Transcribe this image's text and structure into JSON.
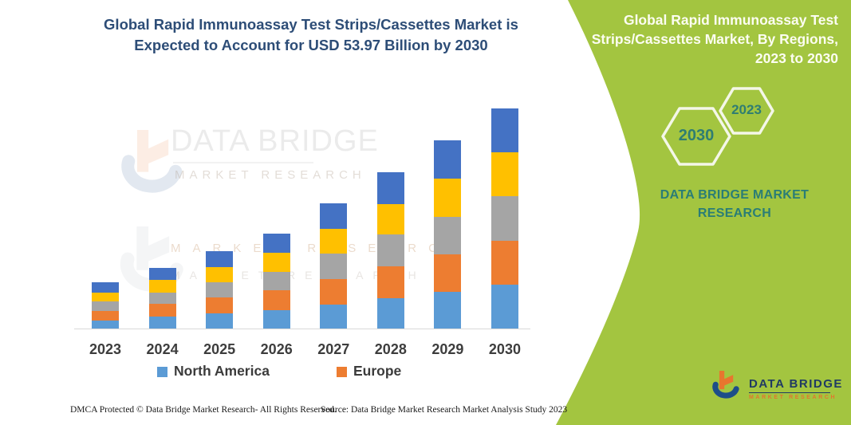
{
  "header": {
    "title_lines": [
      "Global Rapid Immunoassay Test Strips/Cassettes Market is",
      "Expected to Account for USD 53.97 Billion by 2030"
    ]
  },
  "side_panel": {
    "heading_lines": [
      "Global Rapid Immunoassay Test",
      "Strips/Cassettes Market, By Regions,",
      "2023 to 2030"
    ],
    "hexagons": {
      "large": {
        "label": "2030"
      },
      "small": {
        "label": "2023"
      }
    },
    "brand_lines": [
      "DATA BRIDGE MARKET",
      "RESEARCH"
    ],
    "colors": {
      "panel_green": "#a3c540",
      "teal_text": "#2a7d76",
      "hex_outline": "#f4f7e8"
    }
  },
  "watermark": {
    "title": "DATA BRIDGE",
    "subtitle": "MARKET RESEARCH",
    "row2": "MARKET RESEARCH",
    "row3": "MARKET RESEARCH"
  },
  "legend": [
    {
      "label": "North America",
      "color": "#5B9BD5"
    },
    {
      "label": "Europe",
      "color": "#ED7D31"
    }
  ],
  "footer": {
    "dmca": "DMCA Protected © Data Bridge Market Research-  All Rights Reserved.",
    "source": "Source: Data Bridge Market Research  Market Analysis Study 2023"
  },
  "logo": {
    "name": "DATA BRIDGE",
    "subtitle": "MARKET RESEARCH"
  },
  "chart_data": {
    "type": "bar",
    "stacked": true,
    "unit": "USD Billion",
    "annotation": "2030 total = USD 53.97 Billion (from title)",
    "categories": [
      "2023",
      "2024",
      "2025",
      "2026",
      "2027",
      "2028",
      "2029",
      "2030"
    ],
    "series": [
      {
        "key": "north-america",
        "name": "North America",
        "color": "#5B9BD5",
        "values": [
          1.9,
          2.9,
          3.7,
          4.6,
          5.9,
          7.5,
          9.0,
          10.7
        ]
      },
      {
        "key": "europe",
        "name": "Europe",
        "color": "#ED7D31",
        "values": [
          2.5,
          3.1,
          3.9,
          4.8,
          6.3,
          7.8,
          9.3,
          10.9
        ]
      },
      {
        "key": "series3-gray",
        "name": "Series 3 (gray, legend not shown)",
        "color": "#A5A5A5",
        "values": [
          2.2,
          2.9,
          3.8,
          4.6,
          6.2,
          7.7,
          9.2,
          10.9
        ]
      },
      {
        "key": "series4-yellow",
        "name": "Series 4 (yellow, legend not shown)",
        "color": "#FFC000",
        "values": [
          2.2,
          3.0,
          3.7,
          4.7,
          6.1,
          7.6,
          9.3,
          10.7
        ]
      },
      {
        "key": "series5-blue",
        "name": "Series 5 (dark blue, legend not shown)",
        "color": "#4472C4",
        "values": [
          2.6,
          3.0,
          3.9,
          4.6,
          6.2,
          7.7,
          9.4,
          10.8
        ]
      }
    ],
    "totals_estimated": [
      11.4,
      14.9,
      19.0,
      23.3,
      30.7,
      38.3,
      46.2,
      53.97
    ],
    "ylim": [
      0,
      54
    ],
    "xlabel": "",
    "ylabel": "",
    "grid": false,
    "legend_position": "bottom",
    "legend_visible_entries": [
      "North America",
      "Europe"
    ]
  }
}
